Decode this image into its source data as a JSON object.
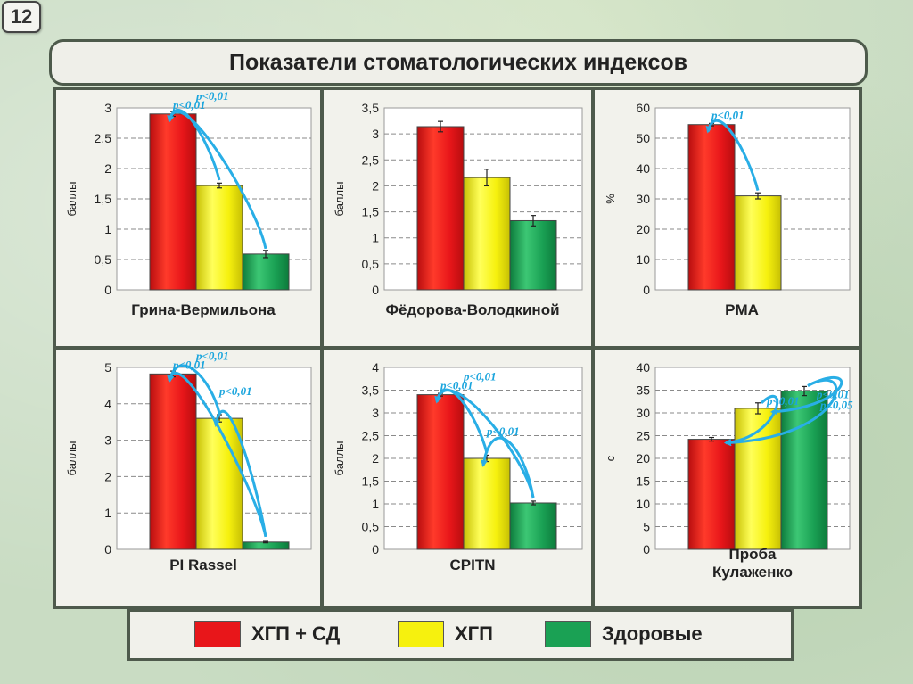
{
  "slide_number": "12",
  "title": "Показатели стоматологических индексов",
  "colors": {
    "red": "#e8161a",
    "yellow": "#f6f10e",
    "green": "#1aa154",
    "arrow": "#29aee6",
    "ptext": "#1ba5dd"
  },
  "legend": [
    {
      "label": "ХГП + СД",
      "color": "red"
    },
    {
      "label": "ХГП",
      "color": "yellow"
    },
    {
      "label": "Здоровые",
      "color": "green"
    }
  ],
  "chart_data": [
    {
      "type": "bar",
      "title": "Грина-Вермильона",
      "ylabel": "баллы",
      "ylim": [
        0,
        3
      ],
      "yticks": [
        "0",
        "0,5",
        "1",
        "1,5",
        "2",
        "2,5",
        "3"
      ],
      "values": [
        2.9,
        1.72,
        0.59
      ],
      "errors": [
        0.04,
        0.04,
        0.06
      ],
      "annotations": [
        {
          "from": 1,
          "to": 0,
          "label": "p<0,01"
        },
        {
          "from": 2,
          "to": 0,
          "label": "p<0,01"
        }
      ]
    },
    {
      "type": "bar",
      "title": "Фёдорова-Володкиной",
      "ylabel": "баллы",
      "ylim": [
        0,
        3.5
      ],
      "yticks": [
        "0",
        "0,5",
        "1",
        "1,5",
        "2",
        "2,5",
        "3",
        "3,5"
      ],
      "values": [
        3.14,
        2.16,
        1.33
      ],
      "errors": [
        0.1,
        0.16,
        0.1
      ],
      "annotations": []
    },
    {
      "type": "bar",
      "title": "PMA",
      "ylabel": "%",
      "ylim": [
        0,
        60
      ],
      "yticks": [
        "0",
        "10",
        "20",
        "30",
        "40",
        "50",
        "60"
      ],
      "values": [
        54.5,
        31.0
      ],
      "errors": [
        0.4,
        1.0
      ],
      "annotations": [
        {
          "from": 1,
          "to": 0,
          "label": "p<0,01"
        }
      ]
    },
    {
      "type": "bar",
      "title": "PI Rassel",
      "ylabel": "баллы",
      "ylim": [
        0,
        5
      ],
      "yticks": [
        "0",
        "1",
        "2",
        "3",
        "4",
        "5"
      ],
      "values": [
        4.82,
        3.6,
        0.2
      ],
      "errors": [
        0.08,
        0.1,
        0.02
      ],
      "annotations": [
        {
          "from": 1,
          "to": 0,
          "label": "p<0,01"
        },
        {
          "from": 2,
          "to": 0,
          "label": "p<0,01"
        },
        {
          "from": 2,
          "to": 1,
          "label": "p<0,01"
        }
      ]
    },
    {
      "type": "bar",
      "title": "CPITN",
      "ylabel": "баллы",
      "ylim": [
        0,
        4
      ],
      "yticks": [
        "0",
        "0,5",
        "1",
        "1,5",
        "2",
        "2,5",
        "3",
        "3,5",
        "4"
      ],
      "values": [
        3.4,
        2.0,
        1.02
      ],
      "errors": [
        0.03,
        0.07,
        0.04
      ],
      "annotations": [
        {
          "from": 1,
          "to": 0,
          "label": "p<0,01"
        },
        {
          "from": 2,
          "to": 0,
          "label": "p<0,01"
        },
        {
          "from": 2,
          "to": 1,
          "label": "p<0,01"
        }
      ]
    },
    {
      "type": "bar",
      "title": "Проба Кулаженко",
      "ylabel": "с",
      "ylim": [
        0,
        40
      ],
      "yticks": [
        "0",
        "5",
        "10",
        "15",
        "20",
        "25",
        "30",
        "35",
        "40"
      ],
      "values": [
        24.2,
        31.0,
        34.8
      ],
      "errors": [
        0.4,
        1.2,
        1.0
      ],
      "annotations": [
        {
          "from": 1,
          "to": 0,
          "label": "p<0,01"
        },
        {
          "from": 2,
          "to": 0,
          "label": "p<0,01"
        },
        {
          "from": 2,
          "to": 1,
          "label": "p<0,05"
        }
      ]
    }
  ]
}
